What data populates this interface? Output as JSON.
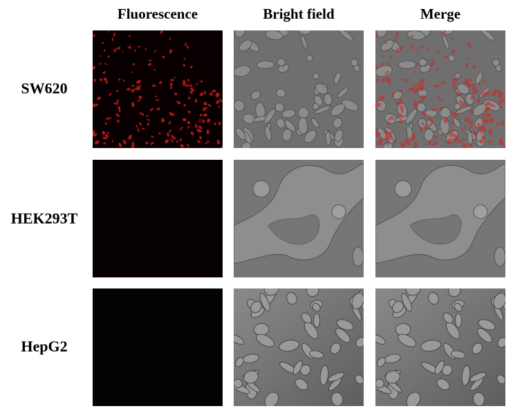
{
  "columns": [
    "Fluorescence",
    "Bright field",
    "Merge"
  ],
  "rows": [
    {
      "label": "SW620",
      "fluorescence_level": 0.8
    },
    {
      "label": "HEK293T",
      "fluorescence_level": 0.05
    },
    {
      "label": "HepG2",
      "fluorescence_level": 0.0
    }
  ],
  "colors": {
    "fluorescence": "#d42020",
    "brightfield_bg": "#6e6e6e",
    "brightfield_cell": "#8a8a8a",
    "dark": "#050505"
  }
}
